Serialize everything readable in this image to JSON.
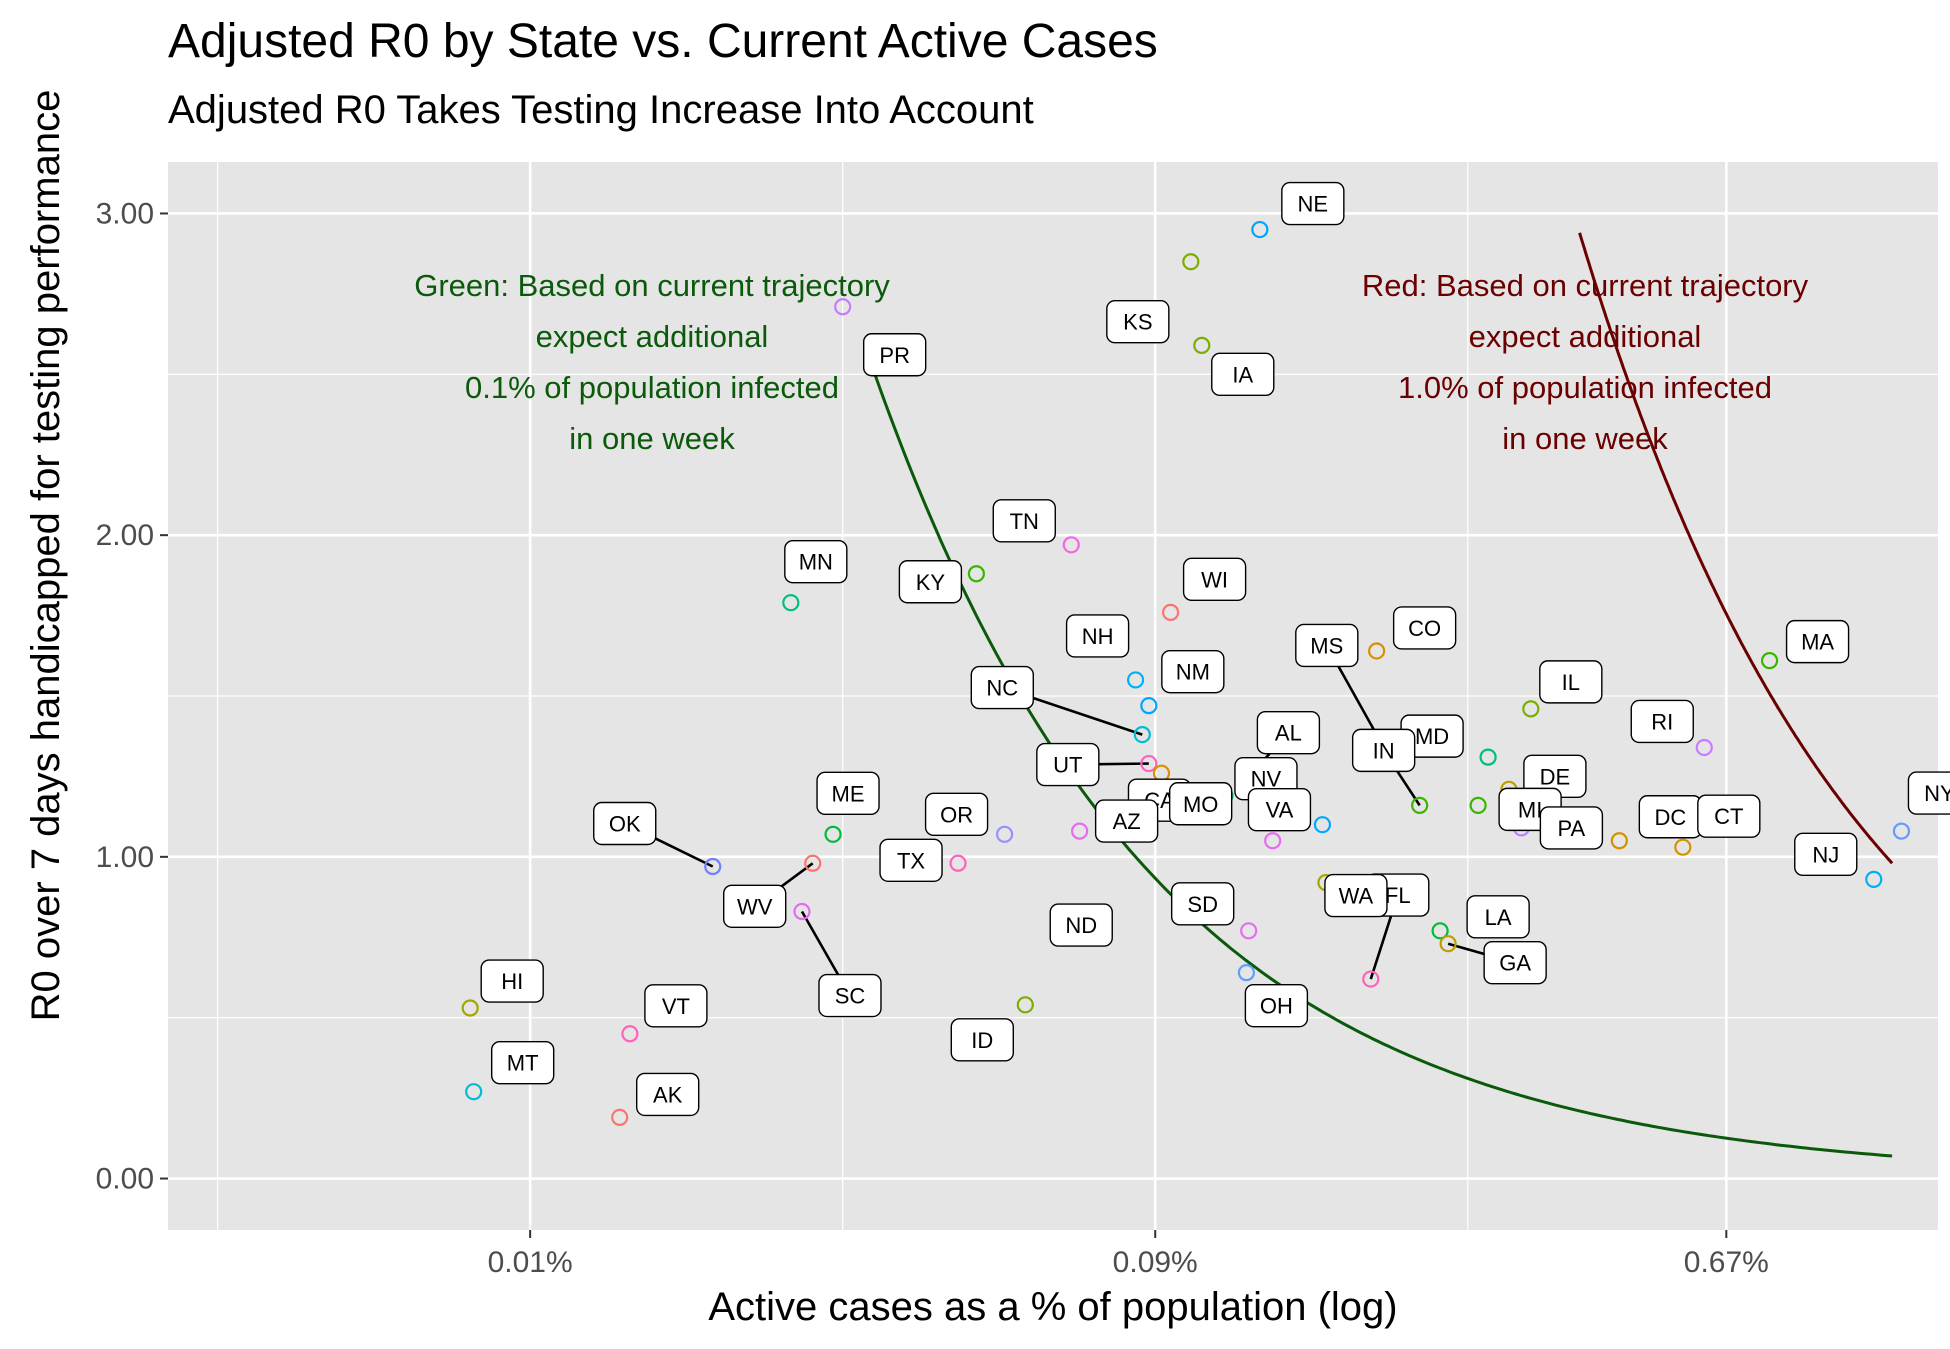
{
  "title": "Adjusted R0 by State vs. Current Active Cases",
  "subtitle": "Adjusted R0 Takes Testing Increase Into Account",
  "chart_data": {
    "type": "scatter",
    "xlabel": "Active cases as a % of population (log)",
    "ylabel": "R0 over 7 days handicapped for testing performance",
    "x_scale": "log",
    "x_tick_labels": [
      "0.01%",
      "0.09%",
      "0.67%"
    ],
    "x_ticks": [
      0.01,
      0.09,
      0.67
    ],
    "xlim": [
      0.0028,
      1.41
    ],
    "y_tick_labels": [
      "0.00",
      "1.00",
      "2.00",
      "3.00"
    ],
    "y_ticks": [
      0,
      1,
      2,
      3
    ],
    "ylim": [
      -0.16,
      3.16
    ],
    "grid": true,
    "legend": "none",
    "points": [
      {
        "label": "NE",
        "x": 0.13,
        "y": 2.95,
        "color": "#00A5FF"
      },
      {
        "label": "KS",
        "x": 0.102,
        "y": 2.85,
        "color": "#7CAE00"
      },
      {
        "label": "PR",
        "x": 0.03,
        "y": 2.71,
        "color": "#C77CFF"
      },
      {
        "label": "IA",
        "x": 0.106,
        "y": 2.59,
        "color": "#7CAE00"
      },
      {
        "label": "TN",
        "x": 0.067,
        "y": 1.97,
        "color": "#F564E3"
      },
      {
        "label": "KY",
        "x": 0.048,
        "y": 1.88,
        "color": "#39B600"
      },
      {
        "label": "MN",
        "x": 0.025,
        "y": 1.79,
        "color": "#00BF7D"
      },
      {
        "label": "WI",
        "x": 0.095,
        "y": 1.76,
        "color": "#F8766D"
      },
      {
        "label": "CO",
        "x": 0.196,
        "y": 1.64,
        "color": "#D89000"
      },
      {
        "label": "MA",
        "x": 0.78,
        "y": 1.61,
        "color": "#39B600"
      },
      {
        "label": "NH",
        "x": 0.084,
        "y": 1.55,
        "color": "#00B0F6"
      },
      {
        "label": "NM",
        "x": 0.088,
        "y": 1.47,
        "color": "#00A5FF"
      },
      {
        "label": "IL",
        "x": 0.337,
        "y": 1.46,
        "color": "#7CAE00"
      },
      {
        "label": "NC",
        "x": 0.086,
        "y": 1.38,
        "color": "#00BCD8"
      },
      {
        "label": "MS",
        "x": 0.201,
        "y": 1.34,
        "color": "#00BFC4"
      },
      {
        "label": "RI",
        "x": 0.62,
        "y": 1.34,
        "color": "#C77CFF"
      },
      {
        "label": "MD",
        "x": 0.29,
        "y": 1.31,
        "color": "#00BF7D"
      },
      {
        "label": "UT",
        "x": 0.088,
        "y": 1.29,
        "color": "#FF61C3"
      },
      {
        "label": "CA",
        "x": 0.092,
        "y": 1.26,
        "color": "#D89000"
      },
      {
        "label": "AL",
        "x": 0.124,
        "y": 1.24,
        "color": "#F8766D"
      },
      {
        "label": "DE",
        "x": 0.312,
        "y": 1.21,
        "color": "#BB9D00"
      },
      {
        "label": "NV",
        "x": 0.115,
        "y": 1.19,
        "color": "#00BF7D"
      },
      {
        "label": "MI",
        "x": 0.28,
        "y": 1.16,
        "color": "#39B600"
      },
      {
        "label": "IN",
        "x": 0.228,
        "y": 1.16,
        "color": "#39B600"
      },
      {
        "label": "ME",
        "x": 0.029,
        "y": 1.07,
        "color": "#00BA38"
      },
      {
        "label": "OR",
        "x": 0.053,
        "y": 1.07,
        "color": "#9590FF"
      },
      {
        "label": "AZ",
        "x": 0.069,
        "y": 1.08,
        "color": "#E76BF3"
      },
      {
        "label": "MO",
        "x": 0.136,
        "y": 1.05,
        "color": "#E76BF3"
      },
      {
        "label": "VA",
        "x": 0.162,
        "y": 1.1,
        "color": "#00A9FF"
      },
      {
        "label": "PA",
        "x": 0.326,
        "y": 1.09,
        "color": "#B983FF"
      },
      {
        "label": "DC",
        "x": 0.46,
        "y": 1.05,
        "color": "#D39200"
      },
      {
        "label": "CT",
        "x": 0.575,
        "y": 1.03,
        "color": "#D89000"
      },
      {
        "label": "NY",
        "x": 1.24,
        "y": 1.08,
        "color": "#619CFF"
      },
      {
        "label": "OK",
        "x": 0.019,
        "y": 0.97,
        "color": "#6F7FFF"
      },
      {
        "label": "WV",
        "x": 0.027,
        "y": 0.98,
        "color": "#F8766D"
      },
      {
        "label": "TX",
        "x": 0.045,
        "y": 0.98,
        "color": "#FF62BC"
      },
      {
        "label": "SD",
        "x": 0.125,
        "y": 0.77,
        "color": "#E76BF3"
      },
      {
        "label": "FL",
        "x": 0.192,
        "y": 0.62,
        "color": "#FF62BC"
      },
      {
        "label": "WA",
        "x": 0.164,
        "y": 0.92,
        "color": "#A3A500"
      },
      {
        "label": "SC",
        "x": 0.026,
        "y": 0.83,
        "color": "#E76BF3"
      },
      {
        "label": "LA",
        "x": 0.245,
        "y": 0.77,
        "color": "#00BA38"
      },
      {
        "label": "GA",
        "x": 0.252,
        "y": 0.73,
        "color": "#BB9D00"
      },
      {
        "label": "NJ",
        "x": 1.125,
        "y": 0.93,
        "color": "#00B0F6"
      },
      {
        "label": "ND",
        "x": 0.064,
        "y": 0.76,
        "color": "#00B0F6"
      },
      {
        "label": "OH",
        "x": 0.124,
        "y": 0.64,
        "color": "#619CFF"
      },
      {
        "label": "ID",
        "x": 0.057,
        "y": 0.54,
        "color": "#7CAE00"
      },
      {
        "label": "HI",
        "x": 0.0081,
        "y": 0.53,
        "color": "#A3A500"
      },
      {
        "label": "VT",
        "x": 0.0142,
        "y": 0.45,
        "color": "#FF62BC"
      },
      {
        "label": "MT",
        "x": 0.0082,
        "y": 0.27,
        "color": "#00BCD8"
      },
      {
        "label": "AK",
        "x": 0.0137,
        "y": 0.19,
        "color": "#F8766D"
      }
    ],
    "curves": [
      {
        "name": "green",
        "color": "#0B5A0B",
        "x_range": [
          0.0336,
          1.2
        ],
        "y_at_start": 2.5
      },
      {
        "name": "red",
        "color": "#6B0000",
        "x_range": [
          0.4,
          1.2
        ],
        "y_at_start": 2.94
      }
    ],
    "annotations": [
      {
        "color": "#0B5A0B",
        "lines": [
          "Green: Based on current trajectory",
          "expect additional",
          "0.1% of population infected",
          "in one week"
        ]
      },
      {
        "color": "#6B0000",
        "lines": [
          "Red: Based on current trajectory",
          "expect additional",
          "1.0% of population infected",
          "in one week"
        ]
      }
    ]
  }
}
